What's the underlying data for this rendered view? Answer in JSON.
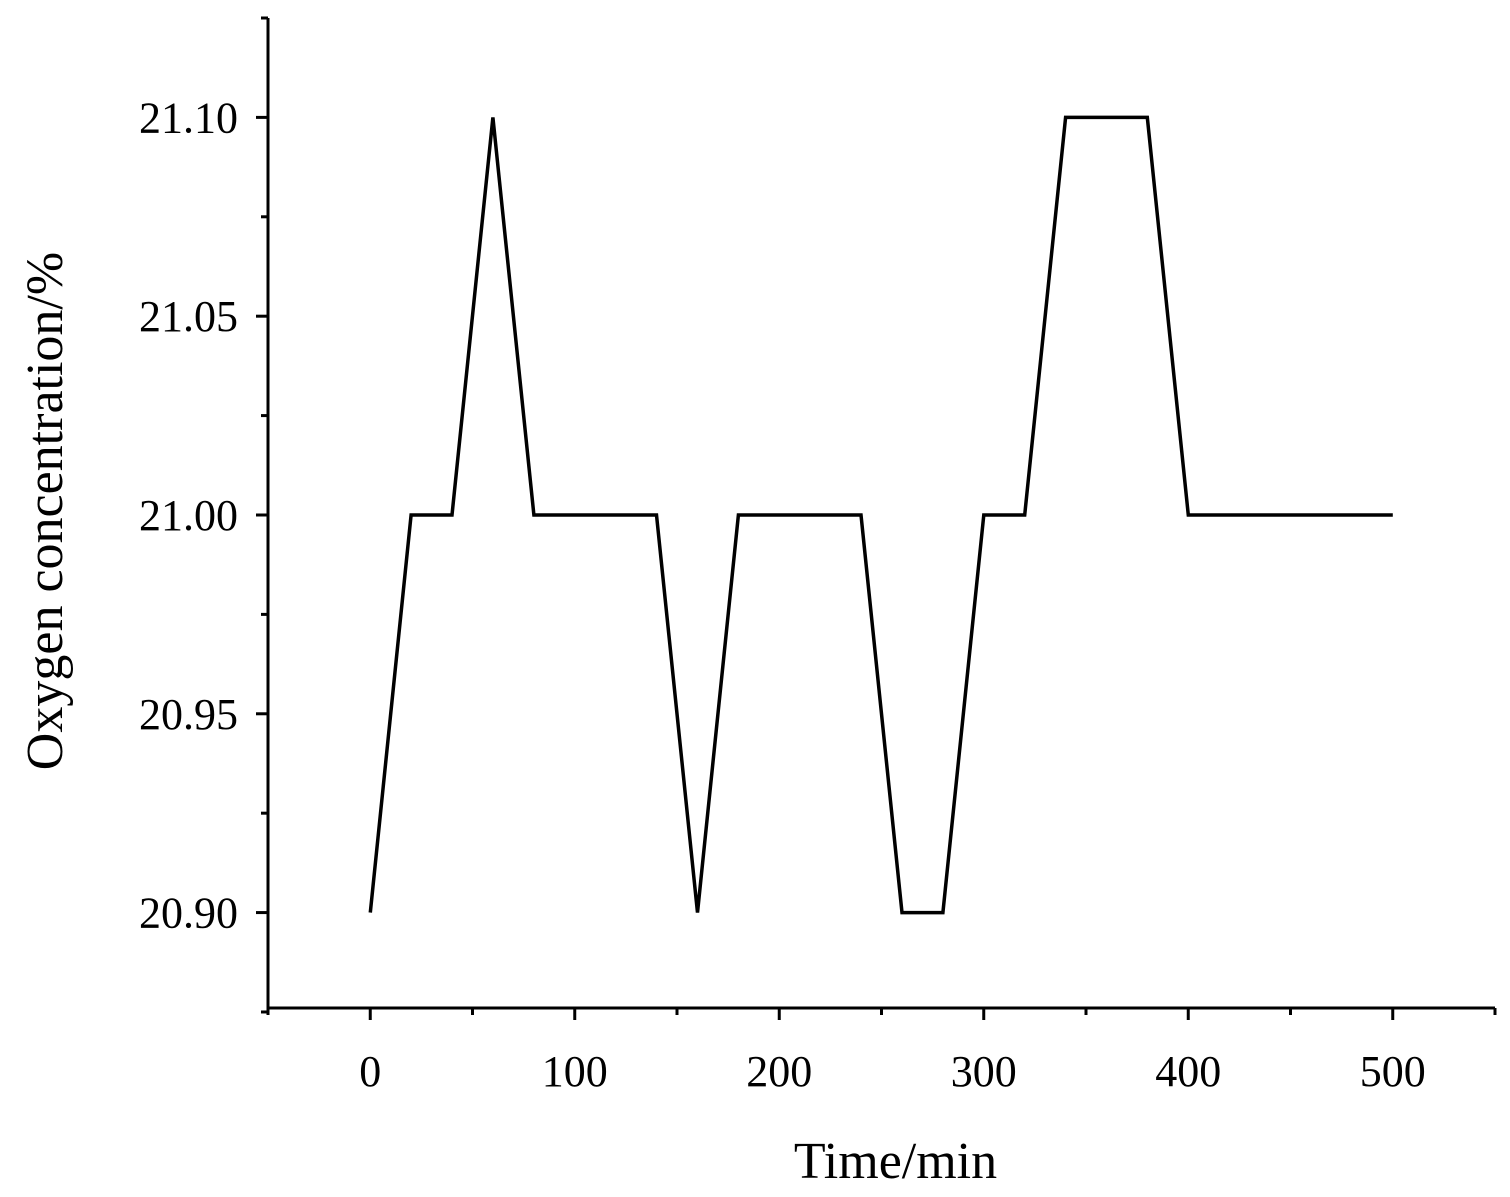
{
  "chart_data": {
    "type": "line",
    "title": "",
    "xlabel": "Time/min",
    "ylabel": "Oxygen concentration/%",
    "xlim": [
      -50,
      550
    ],
    "ylim": [
      20.876,
      21.125
    ],
    "xticks": [
      0,
      100,
      200,
      300,
      400,
      500
    ],
    "xtick_labels": [
      "0",
      "100",
      "200",
      "300",
      "400",
      "500"
    ],
    "xminor_ticks": [
      -50,
      50,
      150,
      250,
      350,
      450,
      550
    ],
    "yticks": [
      20.9,
      20.95,
      21.0,
      21.05,
      21.1
    ],
    "ytick_labels": [
      "20.90",
      "20.95",
      "21.00",
      "21.05",
      "21.10"
    ],
    "yminor_ticks": [
      20.875,
      20.925,
      20.975,
      21.025,
      21.075,
      21.125
    ],
    "grid": false,
    "legend": "none",
    "line_color": "#000000",
    "series": [
      {
        "x": [
          0,
          20,
          40,
          60,
          80,
          100,
          120,
          140,
          160,
          180,
          200,
          220,
          240,
          260,
          280,
          300,
          320,
          340,
          360,
          380,
          400,
          420,
          440,
          460,
          480,
          500
        ],
        "y": [
          20.9,
          21.0,
          21.0,
          21.1,
          21.0,
          21.0,
          21.0,
          21.0,
          20.9,
          21.0,
          21.0,
          21.0,
          21.0,
          20.9,
          20.9,
          21.0,
          21.0,
          21.1,
          21.1,
          21.1,
          21.0,
          21.0,
          21.0,
          21.0,
          21.0,
          21.0
        ]
      }
    ]
  }
}
